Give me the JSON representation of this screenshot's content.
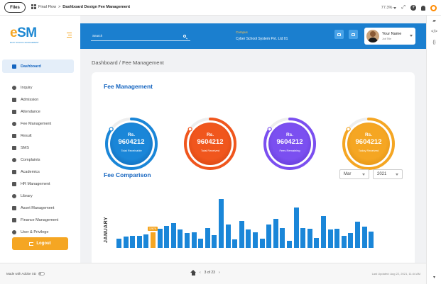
{
  "xd": {
    "files_label": "Files",
    "breadcrumb_parent": "Final Flow",
    "breadcrumb_sep": ">",
    "breadcrumb_current": "Dashboard Design Fee Management",
    "zoom": "77.3%",
    "help_symbol": "?",
    "made_with": "Made with Adobe XD",
    "page_indicator": "3 of 23",
    "last_updated": "Last Updated: Aug 22, 2021, 11:44 AM"
  },
  "logo": {
    "e": "e",
    "sm": "SM",
    "tagline": "EASY SCHOOL MANAGEMENT"
  },
  "sidebar": {
    "items": [
      {
        "label": "Dashboard",
        "icon": "dashboard-icon"
      },
      {
        "label": "Inquiry",
        "icon": "inquiry-icon"
      },
      {
        "label": "Admission",
        "icon": "admission-icon"
      },
      {
        "label": "Attendance",
        "icon": "attendance-icon"
      },
      {
        "label": "Fee Management",
        "icon": "fee-icon"
      },
      {
        "label": "Result",
        "icon": "result-icon"
      },
      {
        "label": "SMS",
        "icon": "sms-icon"
      },
      {
        "label": "Complaints",
        "icon": "complaints-icon"
      },
      {
        "label": "Academics",
        "icon": "academics-icon"
      },
      {
        "label": "HR Management",
        "icon": "hr-icon"
      },
      {
        "label": "Library",
        "icon": "library-icon"
      },
      {
        "label": "Asset Management",
        "icon": "asset-icon"
      },
      {
        "label": "Finance Management",
        "icon": "finance-icon"
      },
      {
        "label": "User & Privilege",
        "icon": "user-privilege-icon"
      }
    ],
    "logout_label": "Logout"
  },
  "header": {
    "search_placeholder": "Search",
    "campus_label": "Campus",
    "campus_value": "Cyber School System Pvt. Ltd 01",
    "user_name": "Your Name",
    "user_role": "Job Title"
  },
  "main": {
    "page_title": "Dashboard / Fee Management",
    "fee_title": "Fee Management",
    "gauges": [
      {
        "currency": "Rs.",
        "amount": "9604212",
        "label": "Total Receivable",
        "color": "#1a86d8",
        "dark": "#0f5fa8",
        "progress": 0.85
      },
      {
        "currency": "Rs.",
        "amount": "9604212",
        "label": "Total Received",
        "color": "#f0561d",
        "dark": "#c93d0b",
        "progress": 0.85
      },
      {
        "currency": "Rs.",
        "amount": "9604212",
        "label": "Fees Remaining",
        "color": "#7b4ff0",
        "dark": "#5a31c9",
        "progress": 0.85
      },
      {
        "currency": "Rs.",
        "amount": "9604212",
        "label": "Today Received",
        "color": "#f5a623",
        "dark": "#d88a0d",
        "progress": 0.85
      }
    ],
    "comparison_title": "Fee Comparison",
    "month_select": "Mar",
    "year_select": "2021",
    "month_axis_label": "JANUARY",
    "highlight_label": "12676"
  },
  "chart_data": {
    "type": "bar",
    "values": [
      12,
      14,
      15,
      15,
      17,
      20,
      24,
      28,
      31,
      23,
      19,
      20,
      12,
      25,
      16,
      62,
      30,
      11,
      34,
      23,
      20,
      12,
      30,
      37,
      25,
      9,
      51,
      25,
      24,
      13,
      40,
      23,
      24,
      15,
      19,
      33,
      27,
      21
    ],
    "highlight_index": 5,
    "ylim": [
      0,
      70
    ]
  }
}
